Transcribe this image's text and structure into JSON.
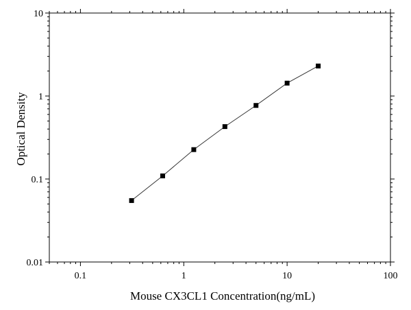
{
  "chart_data": {
    "type": "scatter",
    "title": "",
    "xlabel": "Mouse CX3CL1 Concentration(ng/mL)",
    "ylabel": "Optical Density",
    "x_scale": "log",
    "y_scale": "log",
    "xlim": [
      0.05,
      100
    ],
    "ylim": [
      0.01,
      10
    ],
    "x_ticks": [
      {
        "value": 0.1,
        "label": "0.1"
      },
      {
        "value": 1,
        "label": "1"
      },
      {
        "value": 10,
        "label": "10"
      },
      {
        "value": 100,
        "label": "100"
      }
    ],
    "y_ticks": [
      {
        "value": 0.01,
        "label": "0.01"
      },
      {
        "value": 0.1,
        "label": "0.1"
      },
      {
        "value": 1,
        "label": "1"
      },
      {
        "value": 10,
        "label": "10"
      }
    ],
    "grid": false,
    "legend": "none",
    "marker": "square",
    "fit_line": true,
    "series": [
      {
        "x": [
          0.3125,
          0.625,
          1.25,
          2.5,
          5,
          10,
          20
        ],
        "y": [
          0.055,
          0.109,
          0.226,
          0.428,
          0.77,
          1.43,
          2.3
        ]
      }
    ],
    "colors": {
      "marker": "#000000",
      "line": "#333333",
      "axis": "#000000"
    }
  }
}
